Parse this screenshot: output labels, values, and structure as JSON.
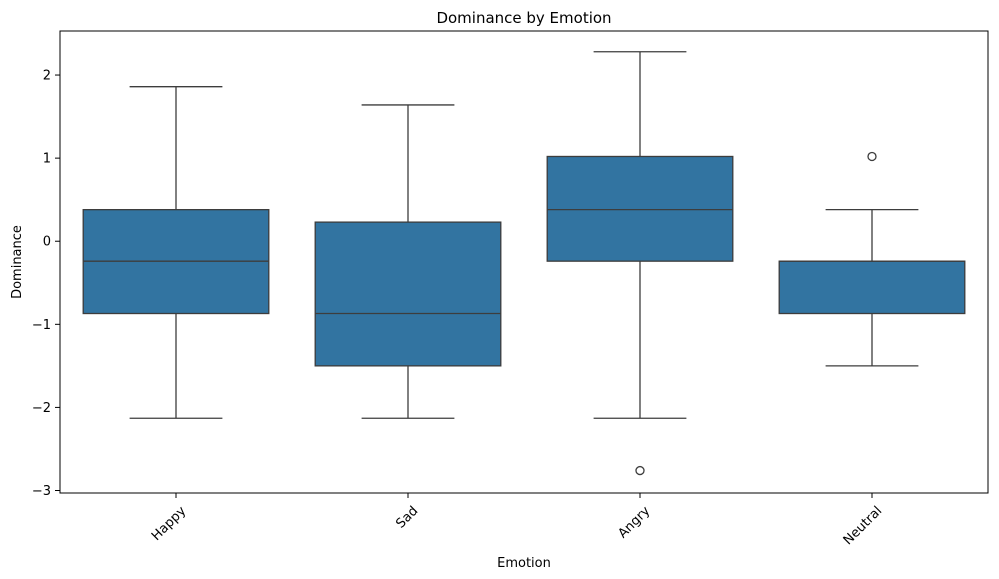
{
  "chart_data": {
    "type": "box",
    "title": "Dominance by Emotion",
    "xlabel": "Emotion",
    "ylabel": "Dominance",
    "categories": [
      "Happy",
      "Sad",
      "Angry",
      "Neutral"
    ],
    "ylim": [
      -3.03,
      2.53
    ],
    "yticks": [
      -3,
      -2,
      -1,
      0,
      1,
      2
    ],
    "ytick_labels": [
      "−3",
      "−2",
      "−1",
      "0",
      "1",
      "2"
    ],
    "grid": false,
    "box_color": "#3274a1",
    "line_color": "#3d3d3d",
    "boxes": [
      {
        "category": "Happy",
        "whisker_low": -2.13,
        "q1": -0.87,
        "median": -0.24,
        "q3": 0.38,
        "whisker_high": 1.86,
        "outliers": []
      },
      {
        "category": "Sad",
        "whisker_low": -2.13,
        "q1": -1.5,
        "median": -0.87,
        "q3": 0.23,
        "whisker_high": 1.64,
        "outliers": []
      },
      {
        "category": "Angry",
        "whisker_low": -2.13,
        "q1": -0.24,
        "median": 0.38,
        "q3": 1.02,
        "whisker_high": 2.28,
        "outliers": [
          -2.76
        ]
      },
      {
        "category": "Neutral",
        "whisker_low": -1.5,
        "q1": -0.87,
        "median": -0.24,
        "q3": -0.24,
        "whisker_high": 0.38,
        "outliers": [
          1.02
        ]
      }
    ]
  }
}
